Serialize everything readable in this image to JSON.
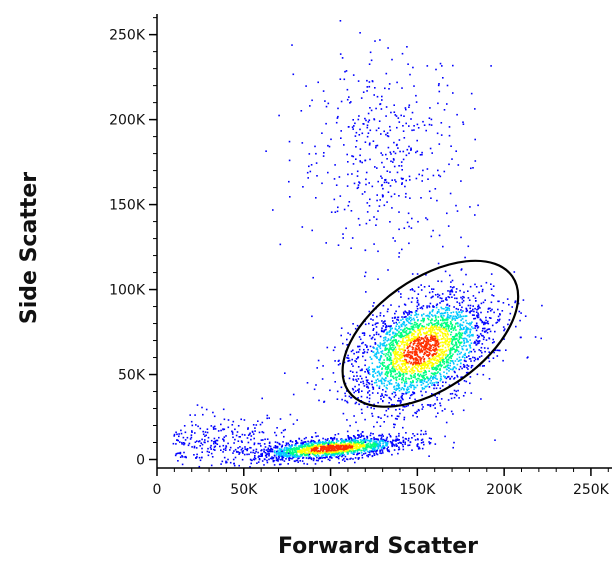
{
  "chart_data": {
    "type": "scatter",
    "title": "",
    "xlabel": "Forward Scatter",
    "ylabel": "Side Scatter",
    "xlim": [
      0,
      262144
    ],
    "ylim": [
      -5000,
      262144
    ],
    "x_ticks": [
      0,
      50000,
      100000,
      150000,
      200000,
      250000
    ],
    "x_tick_labels": [
      "0",
      "50K",
      "100K",
      "150K",
      "200K",
      "250K"
    ],
    "y_ticks": [
      0,
      50000,
      100000,
      150000,
      200000,
      250000
    ],
    "y_tick_labels": [
      "0",
      "50K",
      "100K",
      "150K",
      "200K",
      "250K"
    ],
    "grid": false,
    "legend": "none",
    "density_colormap": [
      "#0000ff",
      "#00c8ff",
      "#00ff80",
      "#ffff00",
      "#ff3000"
    ],
    "gate": {
      "shape": "ellipse",
      "center": [
        150000,
        75000
      ],
      "approx_x_range": [
        100000,
        215000
      ],
      "approx_y_range": [
        30000,
        118000
      ],
      "color": "#000000"
    },
    "populations": [
      {
        "name": "",
        "center": [
          152000,
          65000
        ],
        "spread": [
          22000,
          14000
        ],
        "count": 2600
      },
      {
        "name": "",
        "center": [
          100000,
          7000
        ],
        "spread": [
          22000,
          3000
        ],
        "count": 1500
      },
      {
        "name": "",
        "center": [
          130000,
          180000
        ],
        "spread": [
          25000,
          30000
        ],
        "count": 450
      },
      {
        "name": "",
        "center": [
          30000,
          10000
        ],
        "spread": [
          25000,
          8000
        ],
        "count": 350
      }
    ]
  }
}
